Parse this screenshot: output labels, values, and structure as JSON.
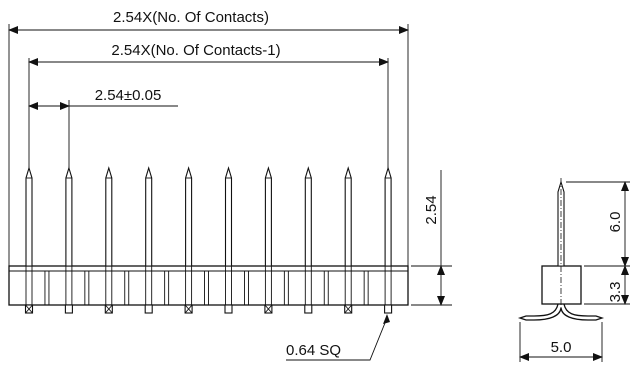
{
  "front_view": {
    "dim_total": "2.54X(No. Of Contacts)",
    "dim_span": "2.54X(No. Of Contacts-1)",
    "dim_pitch": "2.54±0.05",
    "dim_height": "2.54",
    "callout_square": "0.64 SQ",
    "pin_count": 10
  },
  "side_view": {
    "dim_pin_length": "6.0",
    "dim_body_height": "3.3",
    "dim_width": "5.0"
  }
}
